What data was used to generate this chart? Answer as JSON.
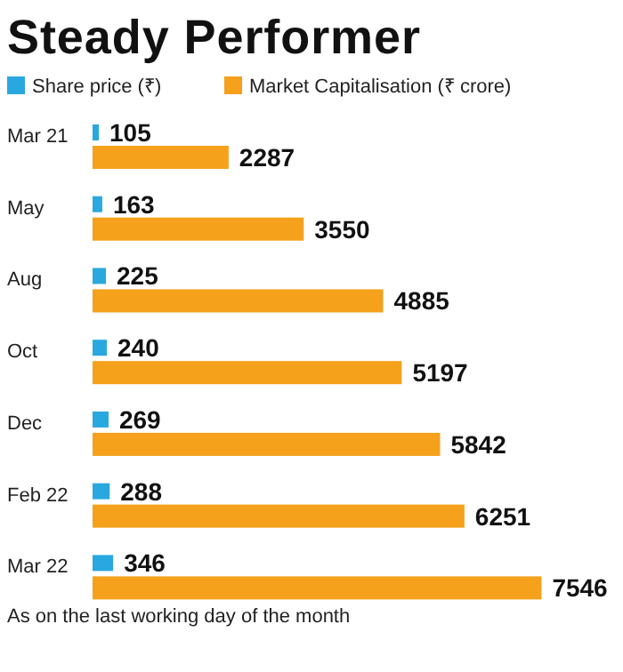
{
  "chart_data": {
    "type": "bar",
    "orientation": "horizontal",
    "title": "Steady Performer",
    "categories": [
      "Mar 21",
      "May",
      "Aug",
      "Oct",
      "Dec",
      "Feb 22",
      "Mar 22"
    ],
    "series": [
      {
        "name": "Share price (₹)",
        "color": "#29a8e0",
        "values": [
          105,
          163,
          225,
          240,
          269,
          288,
          346
        ]
      },
      {
        "name": "Market Capitalisation (₹ crore)",
        "color": "#f5a11c",
        "values": [
          2287,
          3550,
          4885,
          5197,
          5842,
          6251,
          7546
        ]
      }
    ],
    "xlim": [
      0,
      7600
    ],
    "tick_labels": "y",
    "data_labels": true,
    "legend": "top left",
    "annotations": [
      "As on the last working day of the month"
    ]
  }
}
